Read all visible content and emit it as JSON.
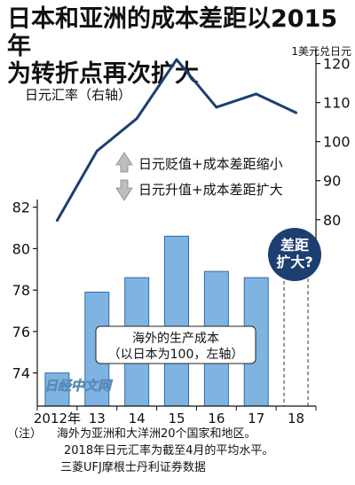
{
  "header": {
    "title_line1": "日本和亚洲的成本差距以2015年",
    "title_line2": "为转折点再次扩大"
  },
  "chart_data": {
    "type": "bar+line",
    "categories": [
      "2012年",
      "13",
      "14",
      "15",
      "16",
      "17",
      "18"
    ],
    "bar_series": {
      "name": "海外的生产成本",
      "values": [
        74.0,
        77.9,
        78.6,
        80.6,
        78.9,
        78.6,
        null
      ],
      "projected_label": "差距\n扩大?",
      "color": "#7fb4e2",
      "stroke": "#2f6da8"
    },
    "line_series": {
      "name": "日元汇率（右轴）",
      "values": [
        79.8,
        97.6,
        105.9,
        121.0,
        108.8,
        112.2,
        107.4
      ],
      "color": "#1c3f70"
    },
    "y_left": {
      "ticks": [
        74,
        76,
        78,
        80,
        82
      ],
      "range": [
        72.4,
        82.2
      ],
      "label_lines": [
        "海外的生产成本",
        "（以日本为100，左轴）"
      ]
    },
    "y_right": {
      "ticks": [
        80,
        90,
        100,
        110,
        120
      ],
      "range": [
        72,
        124
      ],
      "unit": "1美元兑日元"
    },
    "legend": {
      "up_arrow_label": "日元贬值+成本差距缩小",
      "down_arrow_label": "日元升值+成本差距扩大"
    },
    "callout": {
      "line1": "差距",
      "line2": "扩大?",
      "color": "#1c3f70"
    },
    "watermark": "日经中文网"
  },
  "footnote": {
    "tag": "（注）",
    "line1": "海外为亚洲和大洋洲20个国家和地区。",
    "line2": "2018年日元汇率为截至4月的平均水平。",
    "line3": "三菱UFJ摩根士丹利证券数据"
  }
}
